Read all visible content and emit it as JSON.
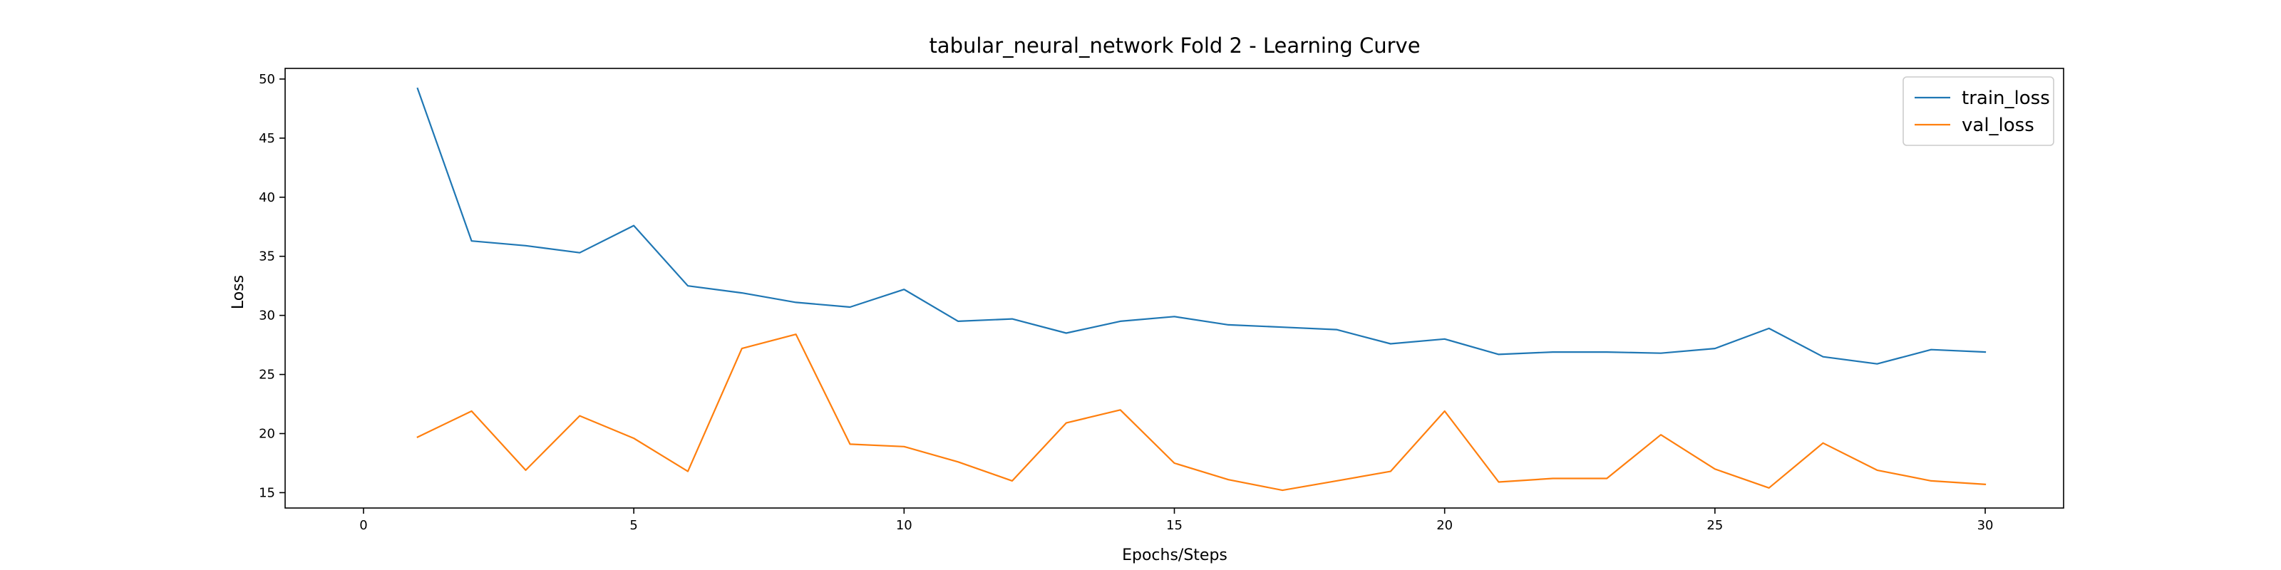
{
  "chart_data": {
    "type": "line",
    "title": "tabular_neural_network Fold 2 - Learning Curve",
    "xlabel": "Epochs/Steps",
    "ylabel": "Loss",
    "xlim": [
      -1.45,
      31.45
    ],
    "ylim": [
      13.7,
      50.9
    ],
    "x_ticks": [
      0,
      5,
      10,
      15,
      20,
      25,
      30
    ],
    "y_ticks": [
      15,
      20,
      25,
      30,
      35,
      40,
      45,
      50
    ],
    "grid": false,
    "legend_position": "top-right",
    "x": [
      1,
      2,
      3,
      4,
      5,
      6,
      7,
      8,
      9,
      10,
      11,
      12,
      13,
      14,
      15,
      16,
      17,
      18,
      19,
      20,
      21,
      22,
      23,
      24,
      25,
      26,
      27,
      28,
      29,
      30
    ],
    "series": [
      {
        "name": "train_loss",
        "color": "#1f77b4",
        "values": [
          49.2,
          36.3,
          35.9,
          35.3,
          37.6,
          32.5,
          31.9,
          31.1,
          30.7,
          32.2,
          29.5,
          29.7,
          28.5,
          29.5,
          29.9,
          29.2,
          29.0,
          28.8,
          27.6,
          28.0,
          26.7,
          26.9,
          26.9,
          26.8,
          27.2,
          28.9,
          26.5,
          25.9,
          27.1,
          26.9
        ]
      },
      {
        "name": "val_loss",
        "color": "#ff7f0e",
        "values": [
          19.7,
          21.9,
          16.9,
          21.5,
          19.6,
          16.8,
          27.2,
          28.4,
          19.1,
          18.9,
          17.6,
          16.0,
          20.9,
          22.0,
          17.5,
          16.1,
          15.2,
          16.0,
          16.8,
          21.9,
          15.9,
          16.2,
          16.2,
          19.9,
          17.0,
          15.4,
          19.2,
          16.9,
          16.0,
          15.7
        ]
      }
    ]
  }
}
